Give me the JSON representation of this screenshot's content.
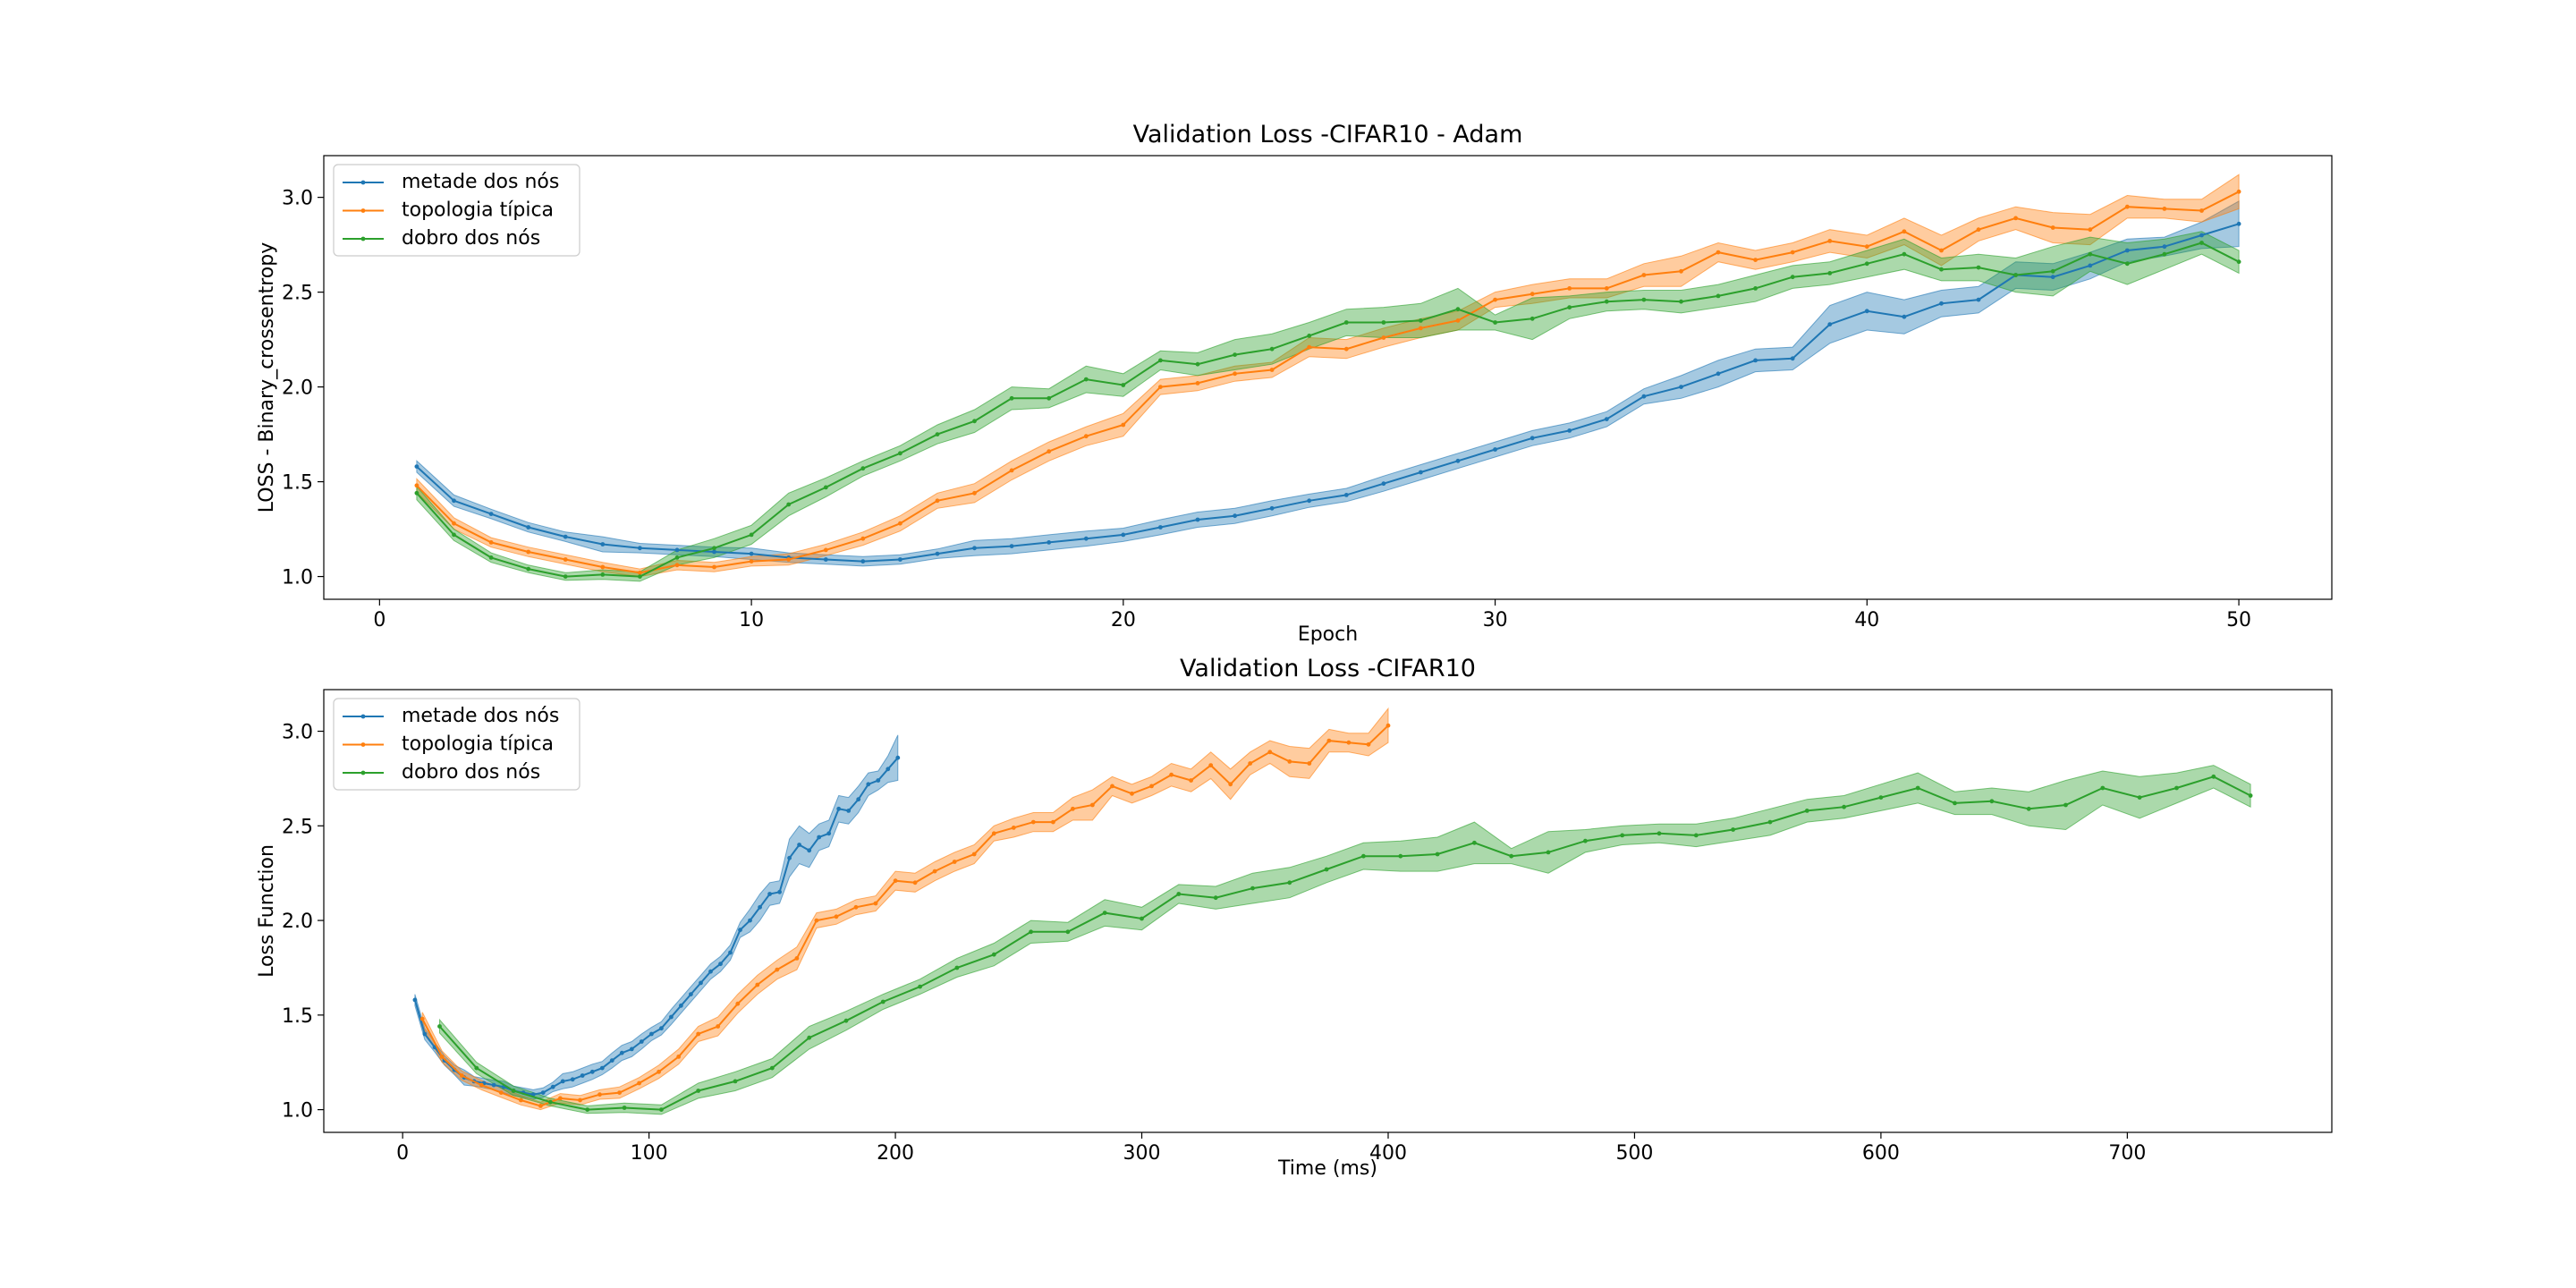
{
  "colors": {
    "series": [
      "#1f77b4",
      "#ff7f0e",
      "#2ca02c"
    ]
  },
  "chart_data": [
    {
      "type": "line",
      "title": "Validation Loss -CIFAR10 - Adam",
      "xlabel": "Epoch",
      "ylabel": "LOSS - Binary_crossentropy",
      "xlim": [
        -1.5,
        52.5
      ],
      "ylim": [
        0.88,
        3.22
      ],
      "xticks": [
        0,
        10,
        20,
        30,
        40,
        50
      ],
      "yticks": [
        1.0,
        1.5,
        2.0,
        2.5,
        3.0
      ],
      "grid": false,
      "legend": "upper left",
      "series": [
        {
          "name": "metade dos nós",
          "x": [
            1,
            2,
            3,
            4,
            5,
            6,
            7,
            8,
            9,
            10,
            11,
            12,
            13,
            14,
            15,
            16,
            17,
            18,
            19,
            20,
            21,
            22,
            23,
            24,
            25,
            26,
            27,
            28,
            29,
            30,
            31,
            32,
            33,
            34,
            35,
            36,
            37,
            38,
            39,
            40,
            41,
            42,
            43,
            44,
            45,
            46,
            47,
            48,
            49,
            50
          ],
          "y": [
            1.58,
            1.4,
            1.33,
            1.26,
            1.21,
            1.17,
            1.15,
            1.14,
            1.13,
            1.12,
            1.1,
            1.09,
            1.08,
            1.09,
            1.12,
            1.15,
            1.16,
            1.18,
            1.2,
            1.22,
            1.26,
            1.3,
            1.32,
            1.36,
            1.4,
            1.43,
            1.49,
            1.55,
            1.61,
            1.67,
            1.73,
            1.77,
            1.83,
            1.95,
            2.0,
            2.07,
            2.14,
            2.15,
            2.33,
            2.4,
            2.37,
            2.44,
            2.46,
            2.59,
            2.58,
            2.64,
            2.72,
            2.74,
            2.8,
            2.86
          ],
          "band": [
            0.03,
            0.03,
            0.025,
            0.025,
            0.025,
            0.04,
            0.025,
            0.025,
            0.025,
            0.03,
            0.025,
            0.025,
            0.025,
            0.025,
            0.025,
            0.04,
            0.04,
            0.04,
            0.04,
            0.035,
            0.04,
            0.04,
            0.04,
            0.04,
            0.035,
            0.035,
            0.04,
            0.04,
            0.04,
            0.04,
            0.04,
            0.04,
            0.04,
            0.04,
            0.06,
            0.07,
            0.06,
            0.06,
            0.1,
            0.1,
            0.09,
            0.07,
            0.07,
            0.07,
            0.07,
            0.07,
            0.06,
            0.05,
            0.07,
            0.12
          ]
        },
        {
          "name": "topologia típica",
          "x": [
            1,
            2,
            3,
            4,
            5,
            6,
            7,
            8,
            9,
            10,
            11,
            12,
            13,
            14,
            15,
            16,
            17,
            18,
            19,
            20,
            21,
            22,
            23,
            24,
            25,
            26,
            27,
            28,
            29,
            30,
            31,
            32,
            33,
            34,
            35,
            36,
            37,
            38,
            39,
            40,
            41,
            42,
            43,
            44,
            45,
            46,
            47,
            48,
            49,
            50
          ],
          "y": [
            1.48,
            1.28,
            1.18,
            1.13,
            1.09,
            1.05,
            1.02,
            1.06,
            1.05,
            1.08,
            1.09,
            1.14,
            1.2,
            1.28,
            1.4,
            1.44,
            1.56,
            1.66,
            1.74,
            1.8,
            2.0,
            2.02,
            2.07,
            2.09,
            2.21,
            2.2,
            2.26,
            2.31,
            2.35,
            2.46,
            2.49,
            2.52,
            2.52,
            2.59,
            2.61,
            2.71,
            2.67,
            2.71,
            2.77,
            2.74,
            2.82,
            2.72,
            2.83,
            2.89,
            2.84,
            2.83,
            2.95,
            2.94,
            2.93,
            3.03
          ],
          "band": [
            0.035,
            0.03,
            0.025,
            0.025,
            0.025,
            0.025,
            0.02,
            0.025,
            0.025,
            0.025,
            0.03,
            0.03,
            0.035,
            0.04,
            0.04,
            0.05,
            0.05,
            0.05,
            0.05,
            0.06,
            0.04,
            0.04,
            0.04,
            0.04,
            0.05,
            0.05,
            0.05,
            0.05,
            0.05,
            0.04,
            0.05,
            0.05,
            0.05,
            0.06,
            0.08,
            0.05,
            0.05,
            0.05,
            0.06,
            0.06,
            0.07,
            0.08,
            0.06,
            0.06,
            0.08,
            0.08,
            0.06,
            0.05,
            0.06,
            0.09
          ]
        },
        {
          "name": "dobro dos nós",
          "x": [
            1,
            2,
            3,
            4,
            5,
            6,
            7,
            8,
            9,
            10,
            11,
            12,
            13,
            14,
            15,
            16,
            17,
            18,
            19,
            20,
            21,
            22,
            23,
            24,
            25,
            26,
            27,
            28,
            29,
            30,
            31,
            32,
            33,
            34,
            35,
            36,
            37,
            38,
            39,
            40,
            41,
            42,
            43,
            44,
            45,
            46,
            47,
            48,
            49,
            50
          ],
          "y": [
            1.44,
            1.22,
            1.1,
            1.04,
            1.0,
            1.01,
            1.0,
            1.1,
            1.15,
            1.22,
            1.38,
            1.47,
            1.57,
            1.65,
            1.75,
            1.82,
            1.94,
            1.94,
            2.04,
            2.01,
            2.14,
            2.12,
            2.17,
            2.2,
            2.27,
            2.34,
            2.34,
            2.35,
            2.41,
            2.34,
            2.36,
            2.42,
            2.45,
            2.46,
            2.45,
            2.48,
            2.52,
            2.58,
            2.6,
            2.65,
            2.7,
            2.62,
            2.63,
            2.59,
            2.61,
            2.7,
            2.65,
            2.7,
            2.76,
            2.66
          ],
          "band": [
            0.035,
            0.03,
            0.025,
            0.02,
            0.02,
            0.025,
            0.025,
            0.04,
            0.05,
            0.05,
            0.06,
            0.05,
            0.04,
            0.04,
            0.05,
            0.06,
            0.06,
            0.05,
            0.07,
            0.06,
            0.05,
            0.06,
            0.08,
            0.08,
            0.07,
            0.07,
            0.08,
            0.09,
            0.11,
            0.04,
            0.11,
            0.06,
            0.05,
            0.05,
            0.06,
            0.06,
            0.07,
            0.06,
            0.06,
            0.07,
            0.08,
            0.06,
            0.07,
            0.09,
            0.13,
            0.09,
            0.11,
            0.08,
            0.06,
            0.06
          ]
        }
      ]
    },
    {
      "type": "line",
      "title": "Validation Loss -CIFAR10",
      "xlabel": "Time (ms)",
      "ylabel": "Loss Function",
      "xlim": [
        -32,
        783
      ],
      "ylim": [
        0.88,
        3.22
      ],
      "xticks": [
        0,
        100,
        200,
        300,
        400,
        500,
        600,
        700
      ],
      "yticks": [
        1.0,
        1.5,
        2.0,
        2.5,
        3.0
      ],
      "grid": false,
      "legend": "upper left",
      "series": [
        {
          "name": "metade dos nós",
          "x": [
            5,
            9,
            13,
            17,
            21,
            25,
            29,
            33,
            37,
            41,
            45,
            49,
            53,
            57,
            61,
            65,
            69,
            73,
            77,
            81,
            85,
            89,
            93,
            97,
            101,
            105,
            109,
            113,
            117,
            121,
            125,
            129,
            133,
            137,
            141,
            145,
            149,
            153,
            157,
            161,
            165,
            169,
            173,
            177,
            181,
            185,
            189,
            193,
            197,
            201
          ],
          "y": [
            1.58,
            1.4,
            1.33,
            1.26,
            1.21,
            1.17,
            1.15,
            1.14,
            1.13,
            1.12,
            1.1,
            1.09,
            1.08,
            1.09,
            1.12,
            1.15,
            1.16,
            1.18,
            1.2,
            1.22,
            1.26,
            1.3,
            1.32,
            1.36,
            1.4,
            1.43,
            1.49,
            1.55,
            1.61,
            1.67,
            1.73,
            1.77,
            1.83,
            1.95,
            2.0,
            2.07,
            2.14,
            2.15,
            2.33,
            2.4,
            2.37,
            2.44,
            2.46,
            2.59,
            2.58,
            2.64,
            2.72,
            2.74,
            2.8,
            2.86
          ],
          "band": [
            0.03,
            0.03,
            0.025,
            0.025,
            0.025,
            0.04,
            0.025,
            0.025,
            0.025,
            0.03,
            0.025,
            0.025,
            0.025,
            0.025,
            0.025,
            0.04,
            0.04,
            0.04,
            0.04,
            0.035,
            0.04,
            0.04,
            0.04,
            0.04,
            0.035,
            0.035,
            0.04,
            0.04,
            0.04,
            0.04,
            0.04,
            0.04,
            0.04,
            0.04,
            0.06,
            0.07,
            0.06,
            0.06,
            0.1,
            0.1,
            0.09,
            0.07,
            0.07,
            0.07,
            0.07,
            0.07,
            0.06,
            0.05,
            0.07,
            0.12
          ]
        },
        {
          "name": "topologia típica",
          "x": [
            8,
            16,
            24,
            32,
            40,
            48,
            56,
            64,
            72,
            80,
            88,
            96,
            104,
            112,
            120,
            128,
            136,
            144,
            152,
            160,
            168,
            176,
            184,
            192,
            200,
            208,
            216,
            224,
            232,
            240,
            248,
            256,
            264,
            272,
            280,
            288,
            296,
            304,
            312,
            320,
            328,
            336,
            344,
            352,
            360,
            368,
            376,
            384,
            392,
            400
          ],
          "y": [
            1.48,
            1.28,
            1.18,
            1.13,
            1.09,
            1.05,
            1.02,
            1.06,
            1.05,
            1.08,
            1.09,
            1.14,
            1.2,
            1.28,
            1.4,
            1.44,
            1.56,
            1.66,
            1.74,
            1.8,
            2.0,
            2.02,
            2.07,
            2.09,
            2.21,
            2.2,
            2.26,
            2.31,
            2.35,
            2.46,
            2.49,
            2.52,
            2.52,
            2.59,
            2.61,
            2.71,
            2.67,
            2.71,
            2.77,
            2.74,
            2.82,
            2.72,
            2.83,
            2.89,
            2.84,
            2.83,
            2.95,
            2.94,
            2.93,
            3.03
          ],
          "band": [
            0.035,
            0.03,
            0.025,
            0.025,
            0.025,
            0.025,
            0.02,
            0.025,
            0.025,
            0.025,
            0.03,
            0.03,
            0.035,
            0.04,
            0.04,
            0.05,
            0.05,
            0.05,
            0.05,
            0.06,
            0.04,
            0.04,
            0.04,
            0.04,
            0.05,
            0.05,
            0.05,
            0.05,
            0.05,
            0.04,
            0.05,
            0.05,
            0.05,
            0.06,
            0.08,
            0.05,
            0.05,
            0.05,
            0.06,
            0.06,
            0.07,
            0.08,
            0.06,
            0.06,
            0.08,
            0.08,
            0.06,
            0.05,
            0.06,
            0.09
          ]
        },
        {
          "name": "dobro dos nós",
          "x": [
            15,
            30,
            45,
            60,
            75,
            90,
            105,
            120,
            135,
            150,
            165,
            180,
            195,
            210,
            225,
            240,
            255,
            270,
            285,
            300,
            315,
            330,
            345,
            360,
            375,
            390,
            405,
            420,
            435,
            450,
            465,
            480,
            495,
            510,
            525,
            540,
            555,
            570,
            585,
            600,
            615,
            630,
            645,
            660,
            675,
            690,
            705,
            720,
            735,
            750
          ],
          "y": [
            1.44,
            1.22,
            1.1,
            1.04,
            1.0,
            1.01,
            1.0,
            1.1,
            1.15,
            1.22,
            1.38,
            1.47,
            1.57,
            1.65,
            1.75,
            1.82,
            1.94,
            1.94,
            2.04,
            2.01,
            2.14,
            2.12,
            2.17,
            2.2,
            2.27,
            2.34,
            2.34,
            2.35,
            2.41,
            2.34,
            2.36,
            2.42,
            2.45,
            2.46,
            2.45,
            2.48,
            2.52,
            2.58,
            2.6,
            2.65,
            2.7,
            2.62,
            2.63,
            2.59,
            2.61,
            2.7,
            2.65,
            2.7,
            2.76,
            2.66
          ],
          "band": [
            0.035,
            0.03,
            0.025,
            0.02,
            0.02,
            0.025,
            0.025,
            0.04,
            0.05,
            0.05,
            0.06,
            0.05,
            0.04,
            0.04,
            0.05,
            0.06,
            0.06,
            0.05,
            0.07,
            0.06,
            0.05,
            0.06,
            0.08,
            0.08,
            0.07,
            0.07,
            0.08,
            0.09,
            0.11,
            0.04,
            0.11,
            0.06,
            0.05,
            0.05,
            0.06,
            0.06,
            0.07,
            0.06,
            0.06,
            0.07,
            0.08,
            0.06,
            0.07,
            0.09,
            0.13,
            0.09,
            0.11,
            0.08,
            0.06,
            0.06
          ]
        }
      ]
    }
  ]
}
